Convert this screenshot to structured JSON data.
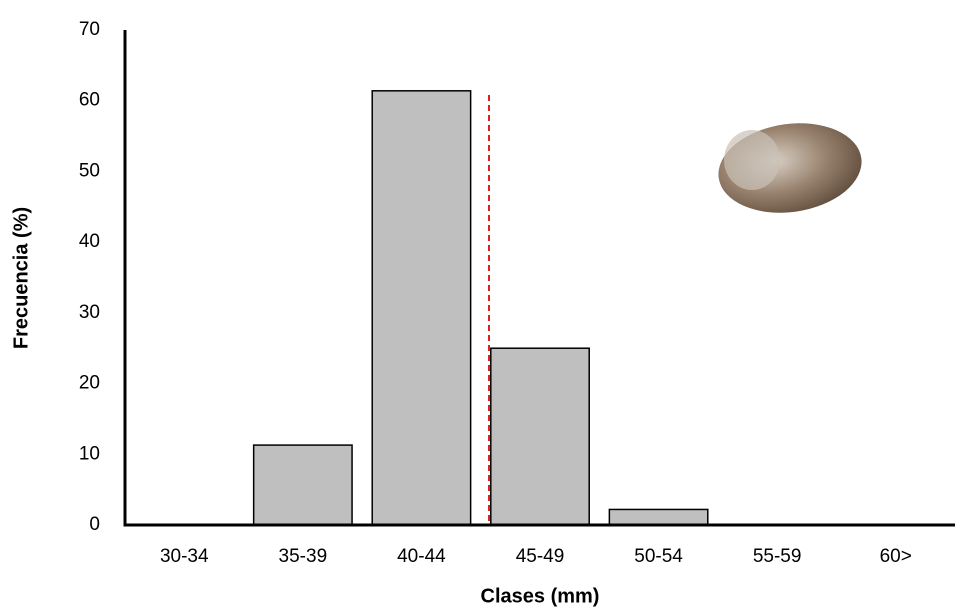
{
  "chart_data": {
    "type": "bar",
    "x_label": "Clases (mm)",
    "y_label": "Frecuencia (%)",
    "categories": [
      "30-34",
      "35-39",
      "40-44",
      "45-49",
      "50-54",
      "55-59",
      "60>"
    ],
    "values": [
      0,
      11.3,
      61.4,
      25,
      2.2,
      0,
      0
    ],
    "color": "#bfbfbf",
    "ylim": [
      0,
      70
    ],
    "yticks": [
      0,
      10,
      20,
      30,
      40,
      50,
      60,
      70
    ],
    "grid": false
  }
}
